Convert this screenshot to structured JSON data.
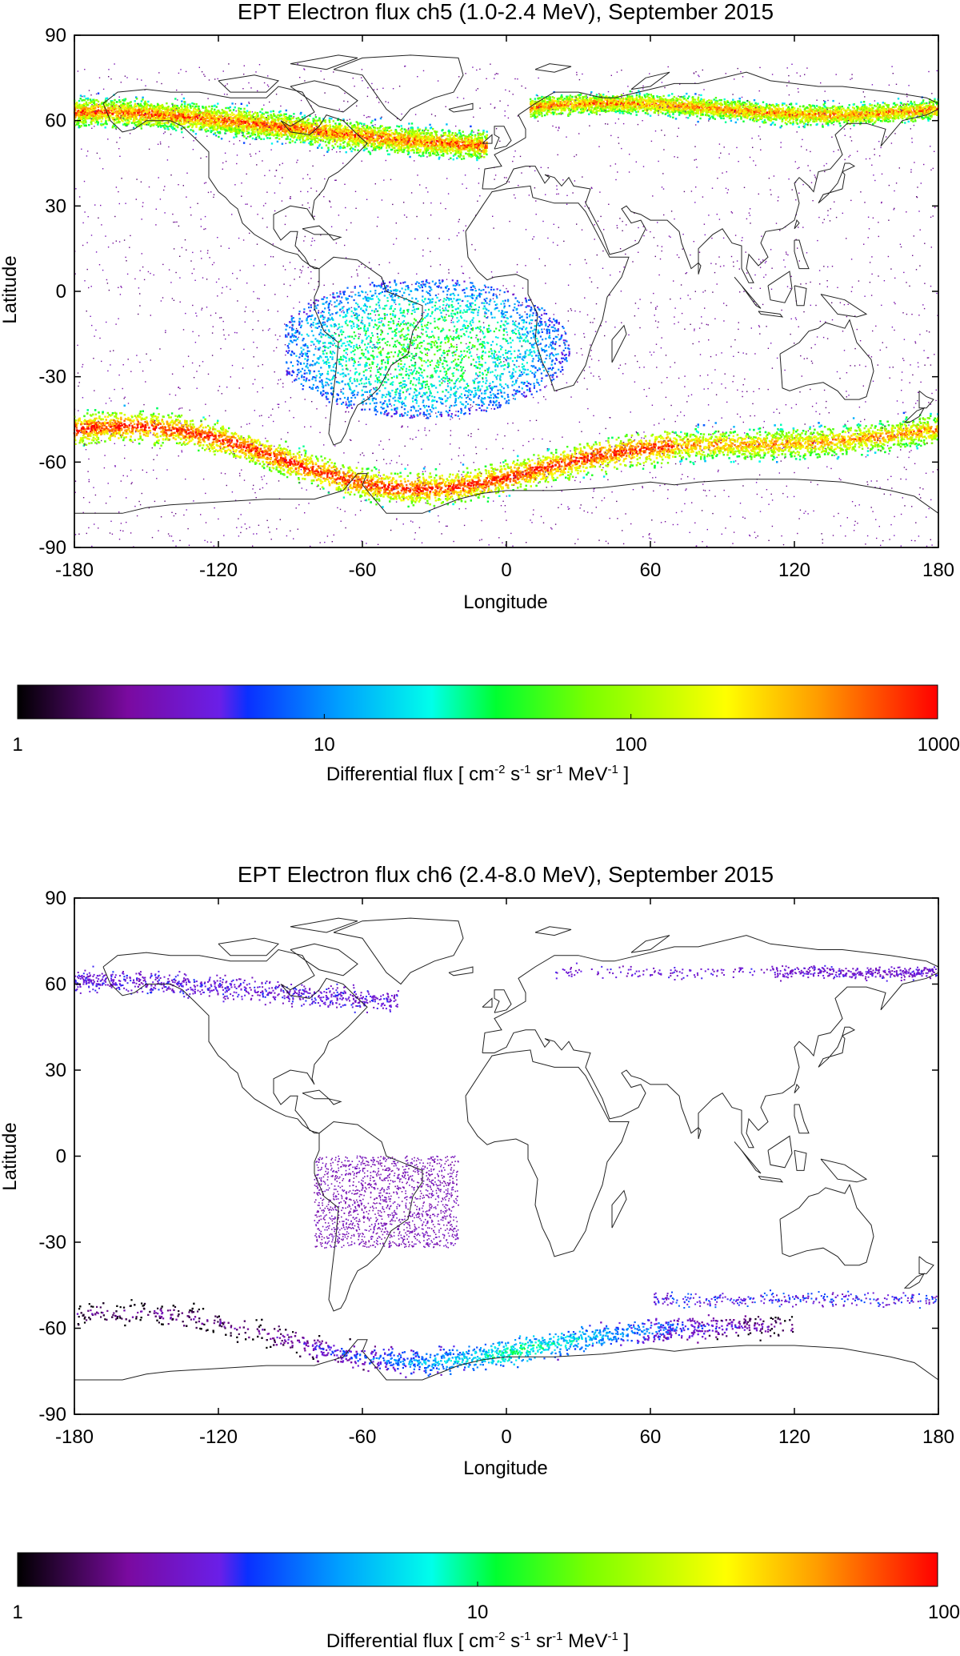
{
  "chart_data": [
    {
      "type": "heatmap",
      "title": "EPT Electron flux ch5 (1.0-2.4 MeV), September 2015",
      "xlabel": "Longitude",
      "ylabel": "Latitude",
      "xlim": [
        -180,
        180
      ],
      "ylim": [
        -90,
        90
      ],
      "xticks": [
        "-180",
        "-120",
        "-60",
        "0",
        "60",
        "120",
        "180"
      ],
      "yticks": [
        "90",
        "60",
        "30",
        "0",
        "-30",
        "-60",
        "-90"
      ],
      "background_map": "world coastlines",
      "colorbar": {
        "label": "Differential flux [ cm-2 s-1 sr-1 MeV-1 ]",
        "label_parts": {
          "pre": "Differential flux [ cm",
          "e1": "-2",
          "s": " s",
          "e2": "-1",
          "sr": " sr",
          "e3": "-1",
          "mev": " MeV",
          "e4": "-1",
          "post": " ]"
        },
        "scale": "log",
        "range": [
          1,
          1000
        ],
        "ticks": [
          "1",
          "10",
          "100",
          "1000"
        ]
      },
      "regions": [
        {
          "name": "northern outer belt",
          "lon": [
            -180,
            -10
          ],
          "lat_center": 57,
          "flux": 500
        },
        {
          "name": "northern outer belt",
          "lon": [
            10,
            180
          ],
          "lat_center": 64,
          "flux": 400
        },
        {
          "name": "South Atlantic Anomaly",
          "lon": [
            -90,
            30
          ],
          "lat": [
            -45,
            5
          ],
          "flux": 20
        },
        {
          "name": "southern outer belt",
          "lon": [
            -180,
            180
          ],
          "lat_center": -58,
          "flux": 800
        }
      ]
    },
    {
      "type": "heatmap",
      "title": "EPT Electron flux ch6 (2.4-8.0 MeV), September 2015",
      "xlabel": "Longitude",
      "ylabel": "Latitude",
      "xlim": [
        -180,
        180
      ],
      "ylim": [
        -90,
        90
      ],
      "xticks": [
        "-180",
        "-120",
        "-60",
        "0",
        "60",
        "120",
        "180"
      ],
      "yticks": [
        "90",
        "60",
        "30",
        "0",
        "-30",
        "-60",
        "-90"
      ],
      "background_map": "world coastlines",
      "colorbar": {
        "label": "Differential flux [ cm-2 s-1 sr-1 MeV-1 ]",
        "label_parts": {
          "pre": "Differential flux [ cm",
          "e1": "-2",
          "s": " s",
          "e2": "-1",
          "sr": " sr",
          "e3": "-1",
          "mev": " MeV",
          "e4": "-1",
          "post": " ]"
        },
        "scale": "log",
        "range": [
          1,
          100
        ],
        "ticks": [
          "1",
          "10",
          "100"
        ]
      },
      "regions": [
        {
          "name": "northern outer belt",
          "lon": [
            -180,
            -40
          ],
          "lat_center": 57,
          "flux": 2
        },
        {
          "name": "South Atlantic Anomaly",
          "lon": [
            -80,
            -20
          ],
          "lat": [
            -30,
            0
          ],
          "flux": 1.5
        },
        {
          "name": "southern outer belt",
          "lon": [
            -100,
            60
          ],
          "lat_center": -60,
          "flux": 6
        }
      ]
    }
  ]
}
